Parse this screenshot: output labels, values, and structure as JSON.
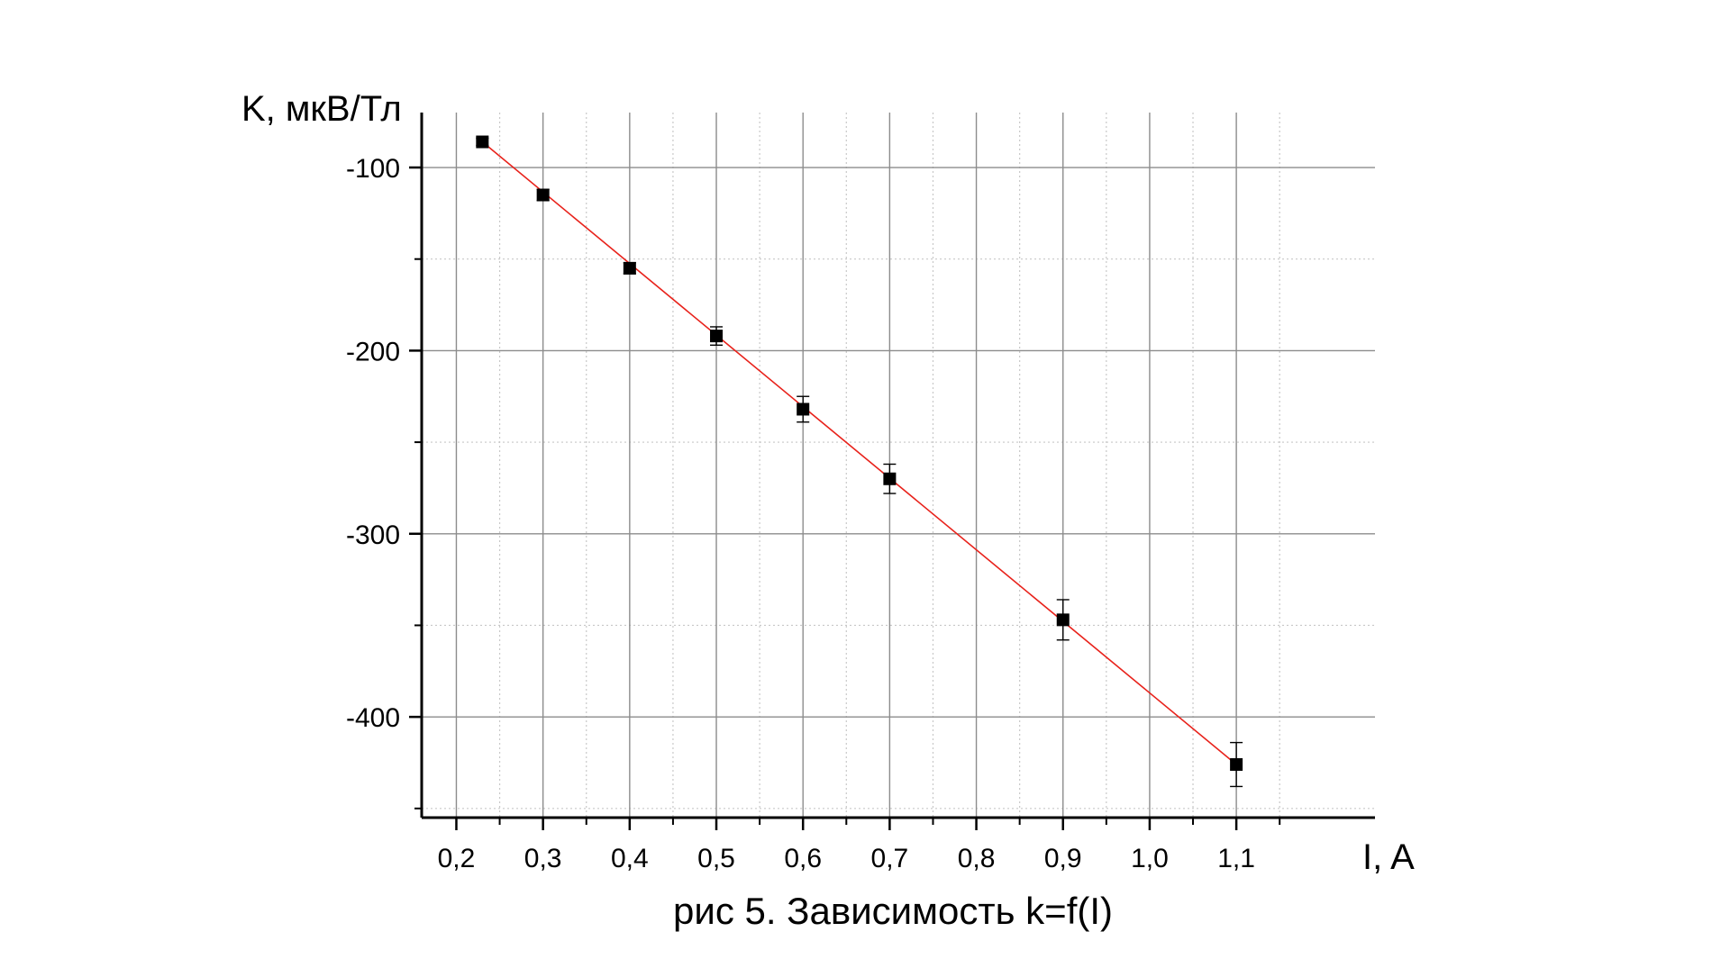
{
  "caption": "рис 5. Зависимость k=f(I)",
  "colors": {
    "marker": "#000000",
    "fit_line": "#e8221b",
    "grid_major": "#8c8c8c",
    "grid_minor": "#c8c8c8",
    "axis": "#000000"
  },
  "chart_data": {
    "type": "scatter",
    "title": "",
    "xlabel": "I, A",
    "ylabel": "K, мкВ/Тл",
    "xlim": [
      0.16,
      1.26
    ],
    "ylim": [
      -455,
      -70
    ],
    "grid": true,
    "x_ticks": [
      0.2,
      0.3,
      0.4,
      0.5,
      0.6,
      0.7,
      0.8,
      0.9,
      1.0,
      1.1
    ],
    "x_tick_labels": [
      "0,2",
      "0,3",
      "0,4",
      "0,5",
      "0,6",
      "0,7",
      "0,8",
      "0,9",
      "1,0",
      "1,1"
    ],
    "x_minor_ticks": [
      0.25,
      0.35,
      0.45,
      0.55,
      0.65,
      0.75,
      0.85,
      0.95,
      1.05,
      1.15
    ],
    "y_ticks": [
      -100,
      -200,
      -300,
      -400
    ],
    "y_tick_labels": [
      "-100",
      "-200",
      "-300",
      "-400"
    ],
    "y_minor_ticks": [
      -150,
      -250,
      -350,
      -450
    ],
    "series": [
      {
        "marker": "square",
        "x": [
          0.23,
          0.3,
          0.4,
          0.5,
          0.6,
          0.7,
          0.9,
          1.1
        ],
        "y": [
          -86,
          -115,
          -155,
          -192,
          -232,
          -270,
          -347,
          -426
        ],
        "error": [
          2,
          3,
          3,
          5,
          7,
          8,
          11,
          12
        ]
      }
    ],
    "fit_line": {
      "x": [
        0.23,
        1.1
      ],
      "y": [
        -86,
        -426
      ]
    }
  }
}
